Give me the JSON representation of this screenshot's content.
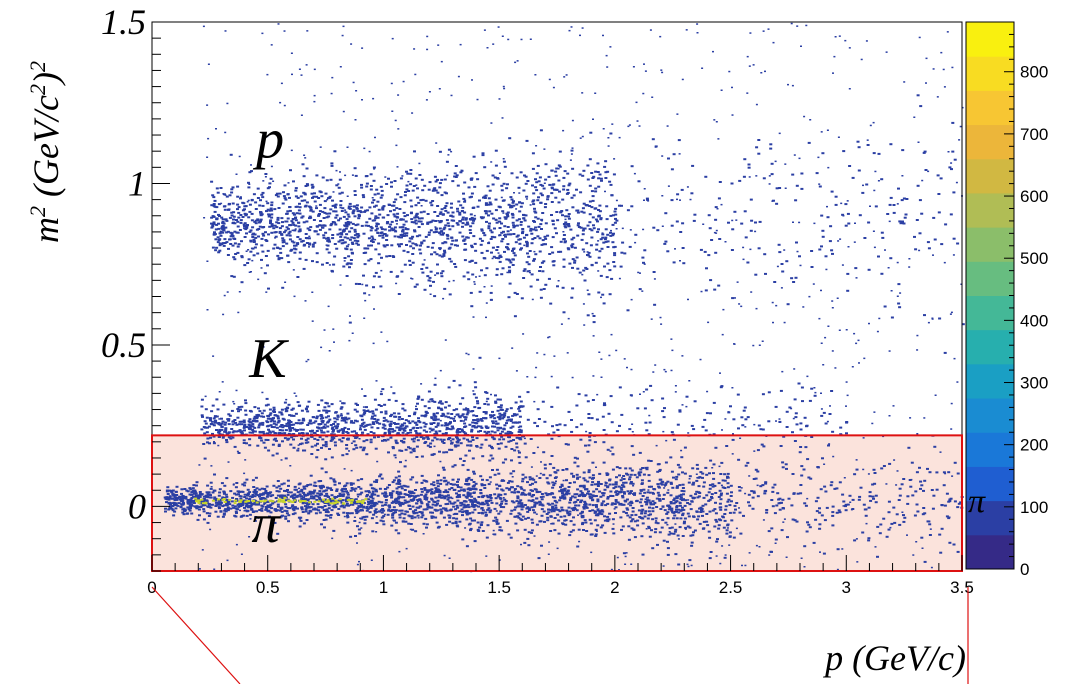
{
  "chart_data": {
    "type": "heatmap",
    "title": "",
    "xlabel": "p (GeV/c)",
    "ylabel_parts": {
      "base": "m",
      "base_exp": "2",
      "unit_open": " (GeV/c",
      "unit_exp": "2",
      "unit_close": ")",
      "unit_exp2": "2"
    },
    "xlim": [
      0,
      3.5
    ],
    "ylim": [
      -0.2,
      1.5
    ],
    "x_ticks": [
      {
        "value": 0,
        "label": "0"
      },
      {
        "value": 0.5,
        "label": "0.5"
      },
      {
        "value": 1,
        "label": "1"
      },
      {
        "value": 1.5,
        "label": "1.5"
      },
      {
        "value": 2,
        "label": "2"
      },
      {
        "value": 2.5,
        "label": "2.5"
      },
      {
        "value": 3,
        "label": "3"
      },
      {
        "value": 3.5,
        "label": "3.5"
      }
    ],
    "y_ticks": [
      {
        "value": 0,
        "label": "0"
      },
      {
        "value": 0.5,
        "label": "0.5"
      },
      {
        "value": 1,
        "label": "1"
      },
      {
        "value": 1.5,
        "label": "1.5"
      }
    ],
    "colorbar": {
      "range": [
        0,
        880
      ],
      "ticks": [
        {
          "value": 0,
          "label": "0"
        },
        {
          "value": 100,
          "label": "100"
        },
        {
          "value": 200,
          "label": "200"
        },
        {
          "value": 300,
          "label": "300"
        },
        {
          "value": 400,
          "label": "400"
        },
        {
          "value": 500,
          "label": "500"
        },
        {
          "value": 600,
          "label": "600"
        },
        {
          "value": 700,
          "label": "700"
        },
        {
          "value": 800,
          "label": "800"
        }
      ],
      "colors": [
        "#352a87",
        "#2b3fa4",
        "#1f5ed1",
        "#1a78d8",
        "#1a8cd2",
        "#1a9fc4",
        "#27afae",
        "#44b897",
        "#67bd80",
        "#8bbe6a",
        "#b0bd55",
        "#d1b842",
        "#ecb63a",
        "#f7c633",
        "#f8dc22",
        "#f9f00f"
      ]
    },
    "bands": [
      {
        "label": "p",
        "m2_center": 0.88,
        "m2_width": 0.05,
        "p_start": 0.25,
        "p_dense_end": 2.0,
        "p_end": 3.5
      },
      {
        "label": "K",
        "m2_center": 0.25,
        "m2_width": 0.025,
        "p_start": 0.2,
        "p_dense_end": 1.6,
        "p_end": 3.0
      },
      {
        "label": "π",
        "m2_center": 0.02,
        "m2_width": 0.02,
        "p_start": 0.05,
        "p_dense_end": 2.5,
        "p_end": 3.5
      }
    ],
    "particle_labels": [
      {
        "text": "p",
        "x": 0.45,
        "y": 1.08
      },
      {
        "text": "K",
        "x": 0.42,
        "y": 0.4
      },
      {
        "text": "π",
        "x": 0.43,
        "y": -0.11
      }
    ],
    "selection_region": {
      "x": [
        0,
        3.5
      ],
      "y": [
        -0.2,
        0.22
      ],
      "border_color": "#dd1111",
      "fill_color": "#fbe3dc"
    },
    "selection_label": "π",
    "accent_line_color": "#dd1111",
    "marker_color": "#2b3fa4",
    "ridge_color": "#c9d62a"
  }
}
